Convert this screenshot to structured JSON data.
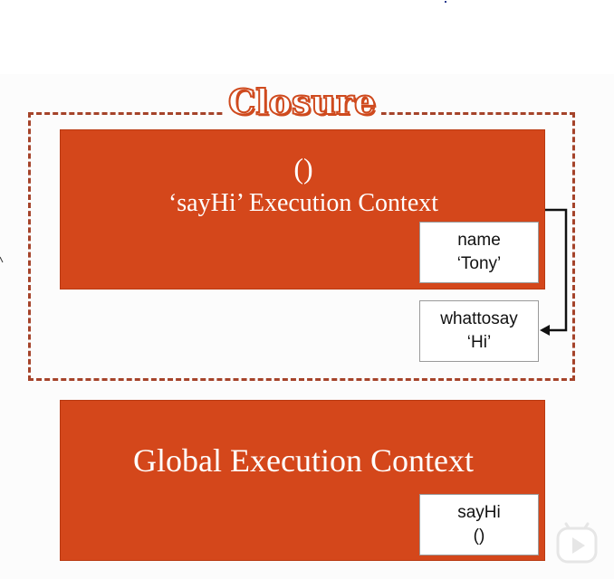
{
  "title": "Closure",
  "sayhi_context": {
    "parens": "()",
    "label": "‘sayHi’ Execution Context",
    "name_var": {
      "name": "name",
      "value": "‘Tony’"
    }
  },
  "outer_var": {
    "name": "whattosay",
    "value": "‘Hi’"
  },
  "global_context": {
    "label": "Global Execution Context",
    "sayhi_var": {
      "name": "sayHi",
      "value": "()"
    }
  },
  "colors": {
    "context_fill": "#d4471b",
    "closure_border": "#a5432a",
    "title_outline": "#cf4a1e"
  },
  "icons": {
    "reference_arrow": "arrow-right-icon",
    "video_control": "play-icon"
  }
}
